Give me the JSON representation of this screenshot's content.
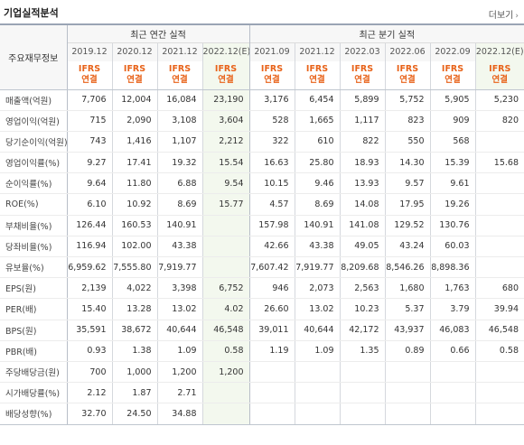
{
  "section": {
    "title": "기업실적분석",
    "more_label": "더보기"
  },
  "header": {
    "row_label": "주요재무정보",
    "annual_group": "최근 연간 실적",
    "quarter_group": "최근 분기 실적",
    "annual_periods": [
      "2019.12",
      "2020.12",
      "2021.12",
      "2022.12(E)"
    ],
    "quarter_periods": [
      "2021.09",
      "2021.12",
      "2022.03",
      "2022.06",
      "2022.09",
      "2022.12(E)"
    ],
    "ifrs_line1": "IFRS",
    "ifrs_line2": "연결"
  },
  "rows": [
    {
      "label": "매출액(억원)",
      "annual": [
        "7,706",
        "12,004",
        "16,084",
        "23,190"
      ],
      "quarter": [
        "3,176",
        "6,454",
        "5,899",
        "5,752",
        "5,905",
        "5,230"
      ]
    },
    {
      "label": "영업이익(억원)",
      "annual": [
        "715",
        "2,090",
        "3,108",
        "3,604"
      ],
      "quarter": [
        "528",
        "1,665",
        "1,117",
        "823",
        "909",
        "820"
      ]
    },
    {
      "label": "당기순이익(억원)",
      "annual": [
        "743",
        "1,416",
        "1,107",
        "2,212"
      ],
      "quarter": [
        "322",
        "610",
        "822",
        "550",
        "568",
        ""
      ]
    },
    {
      "label": "영업이익률(%)",
      "annual": [
        "9.27",
        "17.41",
        "19.32",
        "15.54"
      ],
      "quarter": [
        "16.63",
        "25.80",
        "18.93",
        "14.30",
        "15.39",
        "15.68"
      ]
    },
    {
      "label": "순이익률(%)",
      "annual": [
        "9.64",
        "11.80",
        "6.88",
        "9.54"
      ],
      "quarter": [
        "10.15",
        "9.46",
        "13.93",
        "9.57",
        "9.61",
        ""
      ]
    },
    {
      "label": "ROE(%)",
      "annual": [
        "6.10",
        "10.92",
        "8.69",
        "15.77"
      ],
      "quarter": [
        "4.57",
        "8.69",
        "14.08",
        "17.95",
        "19.26",
        ""
      ]
    },
    {
      "label": "부채비율(%)",
      "annual": [
        "126.44",
        "160.53",
        "140.91",
        ""
      ],
      "quarter": [
        "157.98",
        "140.91",
        "141.08",
        "129.52",
        "130.76",
        ""
      ]
    },
    {
      "label": "당좌비율(%)",
      "annual": [
        "116.94",
        "102.00",
        "43.38",
        ""
      ],
      "quarter": [
        "42.66",
        "43.38",
        "49.05",
        "43.24",
        "60.03",
        ""
      ]
    },
    {
      "label": "유보율(%)",
      "annual": [
        "6,959.62",
        "7,555.80",
        "7,919.77",
        ""
      ],
      "quarter": [
        "7,607.42",
        "7,919.77",
        "8,209.68",
        "8,546.26",
        "8,898.36",
        ""
      ]
    },
    {
      "label": "EPS(원)",
      "annual": [
        "2,139",
        "4,022",
        "3,398",
        "6,752"
      ],
      "quarter": [
        "946",
        "2,073",
        "2,563",
        "1,680",
        "1,763",
        "680"
      ]
    },
    {
      "label": "PER(배)",
      "annual": [
        "15.40",
        "13.28",
        "13.02",
        "4.02"
      ],
      "quarter": [
        "26.60",
        "13.02",
        "10.23",
        "5.37",
        "3.79",
        "39.94"
      ]
    },
    {
      "label": "BPS(원)",
      "annual": [
        "35,591",
        "38,672",
        "40,644",
        "46,548"
      ],
      "quarter": [
        "39,011",
        "40,644",
        "42,172",
        "43,937",
        "46,083",
        "46,548"
      ]
    },
    {
      "label": "PBR(배)",
      "annual": [
        "0.93",
        "1.38",
        "1.09",
        "0.58"
      ],
      "quarter": [
        "1.19",
        "1.09",
        "1.35",
        "0.89",
        "0.66",
        "0.58"
      ]
    },
    {
      "label": "주당배당금(원)",
      "annual": [
        "700",
        "1,000",
        "1,200",
        "1,200"
      ],
      "quarter": [
        "",
        "",
        "",
        "",
        "",
        ""
      ]
    },
    {
      "label": "시가배당률(%)",
      "annual": [
        "2.12",
        "1.87",
        "2.71",
        ""
      ],
      "quarter": [
        "",
        "",
        "",
        "",
        "",
        ""
      ]
    },
    {
      "label": "배당성향(%)",
      "annual": [
        "32.70",
        "24.50",
        "34.88",
        ""
      ],
      "quarter": [
        "",
        "",
        "",
        "",
        "",
        ""
      ]
    }
  ],
  "group_starts": [
    0,
    3,
    6,
    9,
    13
  ]
}
